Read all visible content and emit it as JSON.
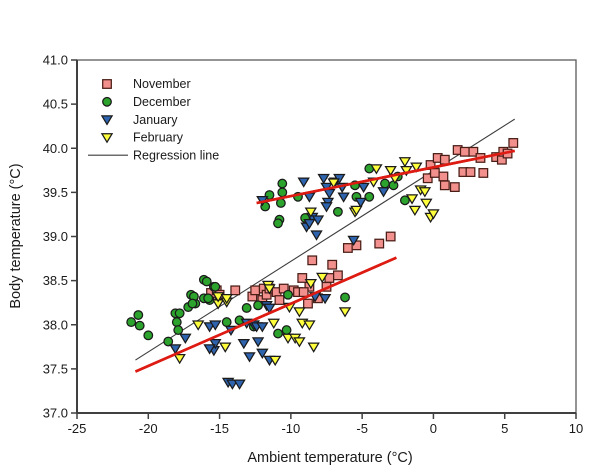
{
  "chart_data": {
    "type": "scatter",
    "title": "",
    "xlabel": "Ambient temperature (°C)",
    "ylabel": "Body temperature (°C)",
    "xlim": [
      -25,
      10
    ],
    "ylim": [
      37.0,
      41.0
    ],
    "x_ticks": [
      -25,
      -20,
      -15,
      -10,
      -5,
      0,
      5,
      10
    ],
    "x_tick_labels": [
      "-25",
      "-20",
      "-15",
      "-10",
      "-5",
      "0",
      "5",
      "10"
    ],
    "y_ticks": [
      37.0,
      37.5,
      38.0,
      38.5,
      39.0,
      39.5,
      40.0,
      40.5,
      41.0
    ],
    "y_tick_labels": [
      "37.0",
      "37.5",
      "38.0",
      "38.5",
      "39.0",
      "39.5",
      "40.0",
      "40.5",
      "41.0"
    ],
    "grid": false,
    "legend_position": "top-left-inside",
    "legend_entries": [
      "November",
      "December",
      "January",
      "February",
      "Regression line"
    ],
    "colors": {
      "november_fill": "#F2908D",
      "december_fill": "#2BA32C",
      "january_fill": "#2E63AE",
      "february_fill": "#FFFF3C",
      "marker_edge": "#262626",
      "regression_line": "#3c3c3c",
      "trend_line_red": "#DD1B12",
      "axis": "#404040"
    },
    "series": [
      {
        "name": "November",
        "marker": "square",
        "fill": "#F2908D",
        "edge": "#4a1d16",
        "points": [
          [
            -0.4,
            39.66
          ],
          [
            -0.2,
            39.81
          ],
          [
            0.1,
            39.72
          ],
          [
            0.3,
            39.89
          ],
          [
            0.7,
            39.68
          ],
          [
            0.8,
            39.87
          ],
          [
            0.8,
            39.58
          ],
          [
            1.5,
            39.56
          ],
          [
            1.7,
            39.98
          ],
          [
            2.1,
            39.73
          ],
          [
            2.2,
            39.96
          ],
          [
            2.6,
            39.73
          ],
          [
            2.8,
            39.96
          ],
          [
            3.3,
            39.89
          ],
          [
            3.5,
            39.72
          ],
          [
            4.4,
            39.9
          ],
          [
            4.8,
            39.87
          ],
          [
            4.9,
            39.96
          ],
          [
            5.2,
            39.94
          ],
          [
            5.6,
            40.06
          ],
          [
            -6.0,
            38.87
          ],
          [
            -5.4,
            38.9
          ],
          [
            -3.8,
            38.92
          ],
          [
            -3.0,
            39.0
          ],
          [
            -8.5,
            38.73
          ],
          [
            -7.1,
            38.68
          ],
          [
            -7.3,
            38.53
          ],
          [
            -6.7,
            38.56
          ],
          [
            -8.7,
            38.43
          ],
          [
            -7.5,
            38.43
          ],
          [
            -9.2,
            38.53
          ],
          [
            -8.1,
            38.3
          ],
          [
            -15.6,
            38.36
          ],
          [
            -15.2,
            38.39
          ],
          [
            -15.0,
            38.34
          ],
          [
            -13.9,
            38.39
          ],
          [
            -12.7,
            38.32
          ],
          [
            -12.5,
            38.39
          ],
          [
            -12.0,
            38.28
          ],
          [
            -11.9,
            38.41
          ],
          [
            -11.7,
            38.34
          ],
          [
            -11.5,
            38.41
          ],
          [
            -11.0,
            38.37
          ],
          [
            -10.8,
            38.28
          ],
          [
            -10.5,
            38.41
          ],
          [
            -9.8,
            38.39
          ],
          [
            -9.5,
            38.37
          ],
          [
            -9.1,
            38.37
          ],
          [
            -8.8,
            38.24
          ]
        ]
      },
      {
        "name": "December",
        "marker": "circle",
        "fill": "#2BA32C",
        "edge": "#1a1a1a",
        "points": [
          [
            -10.6,
            39.6
          ],
          [
            -11.5,
            39.47
          ],
          [
            -10.6,
            39.5
          ],
          [
            -11.8,
            39.34
          ],
          [
            -10.7,
            39.38
          ],
          [
            -10.8,
            39.19
          ],
          [
            -9.5,
            39.45
          ],
          [
            -9.0,
            39.21
          ],
          [
            -6.7,
            39.28
          ],
          [
            -4.5,
            39.77
          ],
          [
            -3.4,
            39.6
          ],
          [
            -2.8,
            39.58
          ],
          [
            -2.5,
            39.68
          ],
          [
            -5.4,
            39.45
          ],
          [
            -4.5,
            39.45
          ],
          [
            -2.0,
            39.41
          ],
          [
            -5.5,
            39.58
          ],
          [
            -10.9,
            39.15
          ],
          [
            -21.2,
            38.03
          ],
          [
            -20.7,
            38.11
          ],
          [
            -20.6,
            37.99
          ],
          [
            -20.0,
            37.88
          ],
          [
            -16.1,
            38.51
          ],
          [
            -17.0,
            38.34
          ],
          [
            -16.7,
            38.24
          ],
          [
            -17.2,
            38.2
          ],
          [
            -18.1,
            38.13
          ],
          [
            -17.8,
            38.13
          ],
          [
            -18.0,
            38.03
          ],
          [
            -17.9,
            37.94
          ],
          [
            -18.6,
            37.81
          ],
          [
            -15.4,
            38.43
          ],
          [
            -15.7,
            38.28
          ],
          [
            -16.1,
            38.3
          ],
          [
            -15.8,
            38.3
          ],
          [
            -15.3,
            38.43
          ],
          [
            -13.1,
            38.19
          ],
          [
            -12.3,
            38.22
          ],
          [
            -10.2,
            38.34
          ],
          [
            -14.5,
            38.03
          ],
          [
            -13.6,
            38.05
          ],
          [
            -12.6,
            37.98
          ],
          [
            -10.9,
            37.9
          ],
          [
            -10.3,
            37.94
          ],
          [
            -15.9,
            38.49
          ],
          [
            -16.8,
            38.32
          ],
          [
            -16.9,
            38.24
          ],
          [
            -6.2,
            38.31
          ]
        ]
      },
      {
        "name": "January",
        "marker": "triangle-down",
        "fill": "#2E63AE",
        "edge": "#1a1a1a",
        "points": [
          [
            -12.0,
            39.41
          ],
          [
            -9.1,
            39.62
          ],
          [
            -8.7,
            39.45
          ],
          [
            -7.7,
            39.66
          ],
          [
            -7.5,
            39.56
          ],
          [
            -7.3,
            39.49
          ],
          [
            -6.9,
            39.62
          ],
          [
            -6.6,
            39.66
          ],
          [
            -6.4,
            39.56
          ],
          [
            -6.3,
            39.45
          ],
          [
            -7.4,
            39.39
          ],
          [
            -8.5,
            39.22
          ],
          [
            -8.1,
            39.19
          ],
          [
            -7.5,
            39.34
          ],
          [
            -8.9,
            39.11
          ],
          [
            -4.9,
            39.56
          ],
          [
            -3.5,
            39.51
          ],
          [
            -5.1,
            39.39
          ],
          [
            -8.2,
            39.02
          ],
          [
            -5.6,
            38.96
          ],
          [
            -8.7,
            39.15
          ],
          [
            -7.6,
            38.3
          ],
          [
            -17.4,
            37.85
          ],
          [
            -18.1,
            37.73
          ],
          [
            -15.4,
            37.71
          ],
          [
            -15.7,
            37.98
          ],
          [
            -15.3,
            38.0
          ],
          [
            -14.2,
            37.94
          ],
          [
            -13.1,
            38.02
          ],
          [
            -12.6,
            38.0
          ],
          [
            -12.4,
            37.98
          ],
          [
            -12.0,
            37.98
          ],
          [
            -11.7,
            38.22
          ],
          [
            -11.5,
            38.19
          ],
          [
            -15.3,
            37.79
          ],
          [
            -13.3,
            37.79
          ],
          [
            -12.3,
            37.81
          ],
          [
            -12.0,
            37.68
          ],
          [
            -12.9,
            37.64
          ],
          [
            -11.5,
            37.6
          ],
          [
            -14.4,
            37.35
          ],
          [
            -14.1,
            37.33
          ],
          [
            -13.6,
            37.33
          ],
          [
            -15.7,
            37.73
          ],
          [
            -8.3,
            38.32
          ]
        ]
      },
      {
        "name": "February",
        "marker": "triangle-down",
        "fill": "#FFFF3C",
        "edge": "#1a1a1a",
        "points": [
          [
            -7.0,
            39.61
          ],
          [
            -8.6,
            39.28
          ],
          [
            -5.5,
            39.28
          ],
          [
            -4.0,
            39.77
          ],
          [
            -3.0,
            39.75
          ],
          [
            -2.0,
            39.85
          ],
          [
            -1.9,
            39.75
          ],
          [
            -1.2,
            39.79
          ],
          [
            -4.2,
            39.62
          ],
          [
            -2.7,
            39.66
          ],
          [
            -0.9,
            39.53
          ],
          [
            -0.6,
            39.51
          ],
          [
            -1.5,
            39.43
          ],
          [
            -0.5,
            39.38
          ],
          [
            -1.3,
            39.3
          ],
          [
            -0.2,
            39.22
          ],
          [
            -5.4,
            39.3
          ],
          [
            0.0,
            39.26
          ],
          [
            -7.8,
            38.54
          ],
          [
            -8.6,
            38.47
          ],
          [
            -11.6,
            38.45
          ],
          [
            -11.5,
            38.41
          ],
          [
            -16.5,
            38.0
          ],
          [
            -17.8,
            37.62
          ],
          [
            -15.1,
            38.24
          ],
          [
            -14.5,
            38.26
          ],
          [
            -15.1,
            38.32
          ],
          [
            -14.5,
            38.3
          ],
          [
            -10.1,
            38.2
          ],
          [
            -9.4,
            38.15
          ],
          [
            -11.2,
            38.02
          ],
          [
            -10.2,
            37.85
          ],
          [
            -9.7,
            37.85
          ],
          [
            -9.4,
            37.81
          ],
          [
            -14.6,
            37.75
          ],
          [
            -11.1,
            37.6
          ],
          [
            -8.4,
            37.75
          ],
          [
            -9.2,
            38.02
          ],
          [
            -8.7,
            38.0
          ],
          [
            -6.2,
            38.15
          ]
        ]
      }
    ],
    "lines": [
      {
        "name": "Regression line",
        "color": "#3c3c3c",
        "width": 1.1,
        "from": [
          -20.9,
          37.6
        ],
        "to": [
          5.7,
          40.33
        ]
      },
      {
        "name": "trend-line-upper",
        "color": "#DD1B12",
        "width": 2.6,
        "from": [
          -12.4,
          39.38
        ],
        "to": [
          5.7,
          39.97
        ]
      },
      {
        "name": "trend-line-lower",
        "color": "#DD1B12",
        "width": 2.6,
        "from": [
          -20.9,
          37.47
        ],
        "to": [
          -2.6,
          38.76
        ]
      }
    ]
  }
}
